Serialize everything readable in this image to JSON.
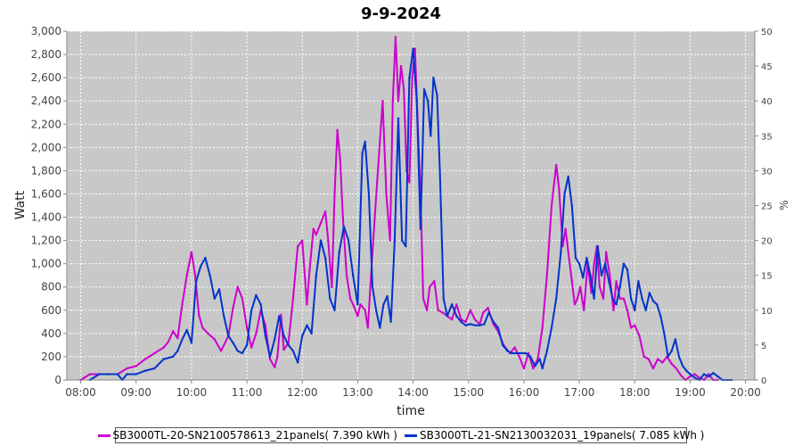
{
  "chart_data": {
    "type": "line",
    "title": "9-9-2024",
    "xlabel": "time",
    "ylabel": "Watt",
    "y2label": "%",
    "ylim": [
      0,
      3000
    ],
    "y2lim": [
      0,
      50
    ],
    "x_range": [
      "07:45",
      "20:10"
    ],
    "x_ticks": [
      "08:00",
      "09:00",
      "10:00",
      "11:00",
      "12:00",
      "13:00",
      "14:00",
      "15:00",
      "16:00",
      "17:00",
      "18:00",
      "19:00",
      "20:00"
    ],
    "y_ticks": [
      "0",
      "200",
      "400",
      "600",
      "800",
      "1,000",
      "1,200",
      "1,400",
      "1,600",
      "1,800",
      "2,000",
      "2,200",
      "2,400",
      "2,600",
      "2,800",
      "3,000"
    ],
    "y2_ticks": [
      "0",
      "5",
      "10",
      "15",
      "20",
      "25",
      "30",
      "35",
      "40",
      "45",
      "50"
    ],
    "grid": true,
    "legend_position": "bottom",
    "background": "#c8c8c8",
    "series": [
      {
        "name": "SB3000TL-20-SN2100578613_21panels( 7.390 kWh )",
        "color": "#cc00cc",
        "points": [
          [
            "08:00",
            0
          ],
          [
            "08:10",
            50
          ],
          [
            "08:20",
            50
          ],
          [
            "08:30",
            50
          ],
          [
            "08:40",
            50
          ],
          [
            "08:50",
            100
          ],
          [
            "09:00",
            120
          ],
          [
            "09:10",
            180
          ],
          [
            "09:20",
            230
          ],
          [
            "09:30",
            280
          ],
          [
            "09:35",
            330
          ],
          [
            "09:40",
            420
          ],
          [
            "09:45",
            360
          ],
          [
            "09:50",
            650
          ],
          [
            "09:55",
            900
          ],
          [
            "10:00",
            1100
          ],
          [
            "10:04",
            900
          ],
          [
            "10:08",
            560
          ],
          [
            "10:12",
            450
          ],
          [
            "10:18",
            400
          ],
          [
            "10:25",
            350
          ],
          [
            "10:32",
            250
          ],
          [
            "10:40",
            380
          ],
          [
            "10:45",
            620
          ],
          [
            "10:50",
            800
          ],
          [
            "10:55",
            700
          ],
          [
            "11:00",
            450
          ],
          [
            "11:05",
            280
          ],
          [
            "11:10",
            400
          ],
          [
            "11:15",
            600
          ],
          [
            "11:20",
            470
          ],
          [
            "11:25",
            180
          ],
          [
            "11:30",
            110
          ],
          [
            "11:33",
            200
          ],
          [
            "11:37",
            560
          ],
          [
            "11:40",
            260
          ],
          [
            "11:45",
            320
          ],
          [
            "11:50",
            700
          ],
          [
            "11:55",
            1150
          ],
          [
            "12:00",
            1200
          ],
          [
            "12:05",
            650
          ],
          [
            "12:08",
            950
          ],
          [
            "12:12",
            1300
          ],
          [
            "12:15",
            1250
          ],
          [
            "12:20",
            1350
          ],
          [
            "12:25",
            1450
          ],
          [
            "12:28",
            1200
          ],
          [
            "12:32",
            800
          ],
          [
            "12:35",
            1600
          ],
          [
            "12:38",
            2150
          ],
          [
            "12:41",
            1900
          ],
          [
            "12:44",
            1400
          ],
          [
            "12:48",
            900
          ],
          [
            "12:52",
            700
          ],
          [
            "12:55",
            650
          ],
          [
            "13:00",
            550
          ],
          [
            "13:03",
            650
          ],
          [
            "13:08",
            600
          ],
          [
            "13:11",
            450
          ],
          [
            "13:16",
            1100
          ],
          [
            "13:21",
            1700
          ],
          [
            "13:27",
            2400
          ],
          [
            "13:31",
            1600
          ],
          [
            "13:35",
            1200
          ],
          [
            "13:38",
            2400
          ],
          [
            "13:41",
            2950
          ],
          [
            "13:44",
            2400
          ],
          [
            "13:47",
            2700
          ],
          [
            "13:50",
            2500
          ],
          [
            "13:53",
            1800
          ],
          [
            "13:56",
            1700
          ],
          [
            "13:59",
            2600
          ],
          [
            "14:02",
            2850
          ],
          [
            "14:05",
            2200
          ],
          [
            "14:08",
            1600
          ],
          [
            "14:11",
            700
          ],
          [
            "14:15",
            600
          ],
          [
            "14:18",
            800
          ],
          [
            "14:23",
            850
          ],
          [
            "14:27",
            600
          ],
          [
            "14:32",
            580
          ],
          [
            "14:37",
            550
          ],
          [
            "14:42",
            520
          ],
          [
            "14:47",
            650
          ],
          [
            "14:52",
            520
          ],
          [
            "14:57",
            500
          ],
          [
            "15:02",
            600
          ],
          [
            "15:07",
            520
          ],
          [
            "15:12",
            480
          ],
          [
            "15:16",
            580
          ],
          [
            "15:21",
            620
          ],
          [
            "15:27",
            480
          ],
          [
            "15:32",
            420
          ],
          [
            "15:38",
            300
          ],
          [
            "15:45",
            230
          ],
          [
            "15:50",
            280
          ],
          [
            "15:55",
            200
          ],
          [
            "16:00",
            100
          ],
          [
            "16:05",
            230
          ],
          [
            "16:10",
            100
          ],
          [
            "16:15",
            180
          ],
          [
            "16:20",
            450
          ],
          [
            "16:25",
            900
          ],
          [
            "16:30",
            1500
          ],
          [
            "16:35",
            1850
          ],
          [
            "16:38",
            1650
          ],
          [
            "16:42",
            1150
          ],
          [
            "16:45",
            1300
          ],
          [
            "16:48",
            1100
          ],
          [
            "16:52",
            850
          ],
          [
            "16:55",
            650
          ],
          [
            "16:58",
            700
          ],
          [
            "17:01",
            800
          ],
          [
            "17:05",
            600
          ],
          [
            "17:09",
            1000
          ],
          [
            "17:13",
            750
          ],
          [
            "17:16",
            1000
          ],
          [
            "17:19",
            1150
          ],
          [
            "17:22",
            800
          ],
          [
            "17:26",
            700
          ],
          [
            "17:29",
            1100
          ],
          [
            "17:33",
            900
          ],
          [
            "17:37",
            600
          ],
          [
            "17:40",
            850
          ],
          [
            "17:44",
            700
          ],
          [
            "17:48",
            700
          ],
          [
            "17:52",
            600
          ],
          [
            "17:56",
            450
          ],
          [
            "18:00",
            470
          ],
          [
            "18:05",
            380
          ],
          [
            "18:10",
            200
          ],
          [
            "18:15",
            180
          ],
          [
            "18:20",
            100
          ],
          [
            "18:25",
            180
          ],
          [
            "18:30",
            150
          ],
          [
            "18:35",
            200
          ],
          [
            "18:40",
            140
          ],
          [
            "18:45",
            100
          ],
          [
            "18:50",
            40
          ],
          [
            "18:55",
            0
          ],
          [
            "19:00",
            30
          ],
          [
            "19:05",
            50
          ],
          [
            "19:10",
            20
          ],
          [
            "19:15",
            0
          ],
          [
            "19:20",
            50
          ],
          [
            "19:25",
            0
          ],
          [
            "19:30",
            0
          ]
        ]
      },
      {
        "name": "SB3000TL-21-SN2130032031_19panels( 7.085 kWh )",
        "color": "#0033cc",
        "points": [
          [
            "08:10",
            0
          ],
          [
            "08:20",
            50
          ],
          [
            "08:30",
            50
          ],
          [
            "08:40",
            50
          ],
          [
            "08:45",
            0
          ],
          [
            "08:50",
            50
          ],
          [
            "09:00",
            50
          ],
          [
            "09:10",
            80
          ],
          [
            "09:20",
            100
          ],
          [
            "09:30",
            180
          ],
          [
            "09:40",
            200
          ],
          [
            "09:45",
            250
          ],
          [
            "09:50",
            350
          ],
          [
            "09:55",
            430
          ],
          [
            "10:00",
            320
          ],
          [
            "10:05",
            850
          ],
          [
            "10:10",
            980
          ],
          [
            "10:15",
            1050
          ],
          [
            "10:20",
            900
          ],
          [
            "10:25",
            700
          ],
          [
            "10:30",
            780
          ],
          [
            "10:35",
            550
          ],
          [
            "10:40",
            380
          ],
          [
            "10:45",
            320
          ],
          [
            "10:50",
            250
          ],
          [
            "10:55",
            230
          ],
          [
            "11:00",
            300
          ],
          [
            "11:05",
            600
          ],
          [
            "11:10",
            730
          ],
          [
            "11:15",
            650
          ],
          [
            "11:20",
            380
          ],
          [
            "11:25",
            200
          ],
          [
            "11:30",
            350
          ],
          [
            "11:35",
            550
          ],
          [
            "11:40",
            380
          ],
          [
            "11:45",
            300
          ],
          [
            "11:50",
            250
          ],
          [
            "11:55",
            150
          ],
          [
            "12:00",
            380
          ],
          [
            "12:05",
            470
          ],
          [
            "12:10",
            400
          ],
          [
            "12:15",
            900
          ],
          [
            "12:20",
            1200
          ],
          [
            "12:25",
            1050
          ],
          [
            "12:30",
            700
          ],
          [
            "12:35",
            600
          ],
          [
            "12:40",
            1100
          ],
          [
            "12:45",
            1320
          ],
          [
            "12:50",
            1200
          ],
          [
            "12:55",
            900
          ],
          [
            "13:00",
            650
          ],
          [
            "13:05",
            1950
          ],
          [
            "13:08",
            2050
          ],
          [
            "13:12",
            1600
          ],
          [
            "13:16",
            800
          ],
          [
            "13:20",
            600
          ],
          [
            "13:24",
            450
          ],
          [
            "13:28",
            650
          ],
          [
            "13:32",
            720
          ],
          [
            "13:36",
            500
          ],
          [
            "13:40",
            1200
          ],
          [
            "13:44",
            2250
          ],
          [
            "13:48",
            1200
          ],
          [
            "13:52",
            1150
          ],
          [
            "13:56",
            2600
          ],
          [
            "14:00",
            2850
          ],
          [
            "14:04",
            2400
          ],
          [
            "14:08",
            1300
          ],
          [
            "14:12",
            2500
          ],
          [
            "14:16",
            2400
          ],
          [
            "14:19",
            2100
          ],
          [
            "14:22",
            2600
          ],
          [
            "14:26",
            2450
          ],
          [
            "14:29",
            1800
          ],
          [
            "14:33",
            700
          ],
          [
            "14:37",
            550
          ],
          [
            "14:42",
            650
          ],
          [
            "14:47",
            550
          ],
          [
            "14:52",
            500
          ],
          [
            "14:57",
            470
          ],
          [
            "15:02",
            480
          ],
          [
            "15:07",
            470
          ],
          [
            "15:12",
            470
          ],
          [
            "15:17",
            480
          ],
          [
            "15:22",
            580
          ],
          [
            "15:27",
            500
          ],
          [
            "15:32",
            450
          ],
          [
            "15:37",
            300
          ],
          [
            "15:42",
            250
          ],
          [
            "15:47",
            230
          ],
          [
            "15:52",
            230
          ],
          [
            "15:57",
            230
          ],
          [
            "16:02",
            230
          ],
          [
            "16:07",
            200
          ],
          [
            "16:12",
            120
          ],
          [
            "16:17",
            180
          ],
          [
            "16:20",
            100
          ],
          [
            "16:25",
            250
          ],
          [
            "16:30",
            450
          ],
          [
            "16:35",
            700
          ],
          [
            "16:40",
            1100
          ],
          [
            "16:44",
            1600
          ],
          [
            "16:48",
            1750
          ],
          [
            "16:52",
            1500
          ],
          [
            "16:56",
            1050
          ],
          [
            "17:00",
            1000
          ],
          [
            "17:04",
            880
          ],
          [
            "17:08",
            1050
          ],
          [
            "17:12",
            900
          ],
          [
            "17:16",
            700
          ],
          [
            "17:20",
            1150
          ],
          [
            "17:24",
            900
          ],
          [
            "17:28",
            1000
          ],
          [
            "17:32",
            850
          ],
          [
            "17:36",
            700
          ],
          [
            "17:40",
            650
          ],
          [
            "17:44",
            800
          ],
          [
            "17:48",
            1000
          ],
          [
            "17:52",
            950
          ],
          [
            "17:56",
            700
          ],
          [
            "18:00",
            600
          ],
          [
            "18:04",
            850
          ],
          [
            "18:08",
            700
          ],
          [
            "18:12",
            600
          ],
          [
            "18:16",
            750
          ],
          [
            "18:20",
            680
          ],
          [
            "18:24",
            650
          ],
          [
            "18:28",
            550
          ],
          [
            "18:32",
            400
          ],
          [
            "18:36",
            200
          ],
          [
            "18:40",
            250
          ],
          [
            "18:44",
            350
          ],
          [
            "18:48",
            200
          ],
          [
            "18:52",
            120
          ],
          [
            "18:56",
            80
          ],
          [
            "19:00",
            50
          ],
          [
            "19:05",
            20
          ],
          [
            "19:10",
            0
          ],
          [
            "19:15",
            50
          ],
          [
            "19:20",
            30
          ],
          [
            "19:25",
            60
          ],
          [
            "19:30",
            30
          ],
          [
            "19:35",
            0
          ],
          [
            "19:45",
            0
          ]
        ]
      }
    ]
  }
}
